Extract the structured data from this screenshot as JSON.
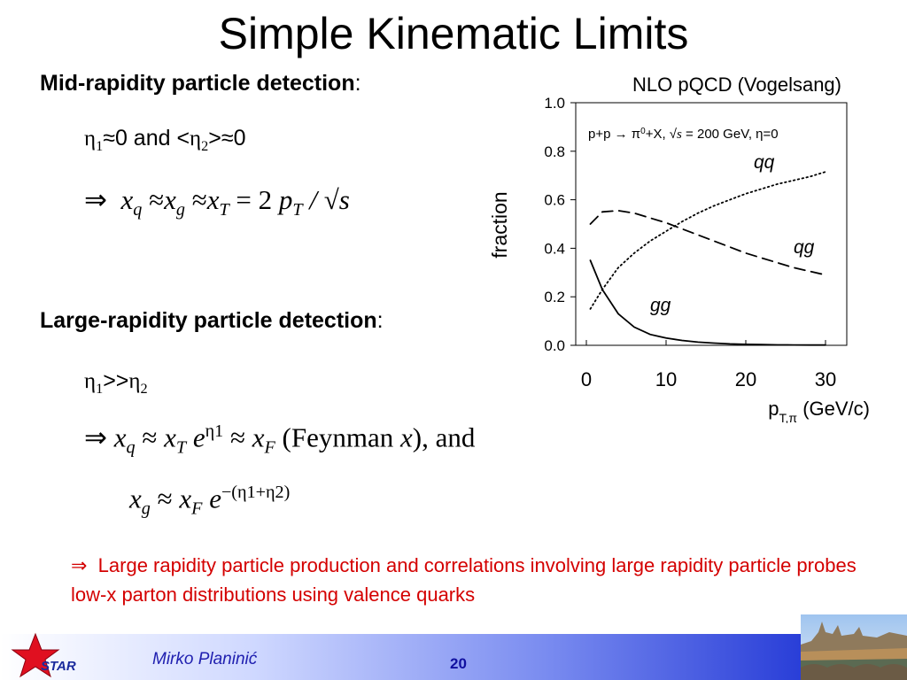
{
  "slide": {
    "title": "Simple Kinematic Limits",
    "mid": {
      "heading": "Mid-rapidity particle detection",
      "colon": ":",
      "condition_and": "0 and <",
      "condition_end": ">",
      "condition_zero": "0",
      "eta": "η",
      "approx": "≈",
      "sub1": "1",
      "sub2": "2"
    },
    "large": {
      "heading": "Large-rapidity particle detection",
      "colon": ":",
      "condition_gtgt": ">>",
      "feynman": "(Feynman ",
      "feynman_x": "x",
      "feynman_end": "), and"
    },
    "formula": {
      "implies": "⇒",
      "approx": "≈",
      "x": "x",
      "q": "q",
      "g": "g",
      "T": "T",
      "F": "F",
      "e": "e",
      "eq": "= 2",
      "p": "p",
      "slash": "/",
      "sqrt": "√",
      "s": "s",
      "eta1": "η1",
      "neg_sum": "−(η1+η2)"
    },
    "note": {
      "arrow": "⇒",
      "text": "Large rapidity particle production and correlations involving large rapidity particle probes low-x parton distributions using valence quarks"
    },
    "footer": {
      "author": "Mirko Planinić",
      "page": "20",
      "logo_text": "STAR"
    }
  },
  "colors": {
    "note": "#d40000",
    "footer_author": "#2020b0",
    "logo_star": "#e01020",
    "logo_text": "#1a2a9c"
  },
  "chart_data": {
    "type": "line",
    "title": "NLO pQCD  (Vogelsang)",
    "subtitle": {
      "process": "p+p → π",
      "pi_sup": "0",
      "rest": "+X, √",
      "s_italic": "s",
      "energy": " = 200 GeV, η=0"
    },
    "ylabel": "fraction",
    "xlabel": {
      "main": "p",
      "sub": "T,π",
      "unit": " (GeV/c)"
    },
    "xlim": [
      0,
      32
    ],
    "ylim": [
      0,
      1.0
    ],
    "x_ticks": [
      0,
      10,
      20,
      30
    ],
    "y_ticks": [
      "0.0",
      "0.2",
      "0.4",
      "0.6",
      "0.8",
      "1.0"
    ],
    "grid": false,
    "series": [
      {
        "name": "qq",
        "style": "dotted",
        "x": [
          0.5,
          2,
          4,
          6,
          8,
          10,
          12,
          14,
          16,
          18,
          20,
          22,
          24,
          26,
          28,
          30
        ],
        "y": [
          0.15,
          0.23,
          0.32,
          0.38,
          0.43,
          0.47,
          0.51,
          0.545,
          0.575,
          0.6,
          0.625,
          0.645,
          0.665,
          0.68,
          0.695,
          0.715
        ]
      },
      {
        "name": "qg",
        "style": "dashed",
        "x": [
          0.5,
          2,
          4,
          6,
          8,
          10,
          12,
          14,
          16,
          18,
          20,
          22,
          24,
          26,
          28,
          30
        ],
        "y": [
          0.5,
          0.55,
          0.555,
          0.545,
          0.525,
          0.505,
          0.48,
          0.455,
          0.43,
          0.405,
          0.38,
          0.36,
          0.34,
          0.32,
          0.305,
          0.29
        ]
      },
      {
        "name": "gg",
        "style": "solid",
        "x": [
          0.5,
          2,
          4,
          6,
          8,
          10,
          12,
          14,
          16,
          18,
          20,
          22,
          24,
          26,
          28,
          30
        ],
        "y": [
          0.35,
          0.23,
          0.13,
          0.075,
          0.045,
          0.03,
          0.02,
          0.013,
          0.009,
          0.006,
          0.004,
          0.003,
          0.002,
          0.0015,
          0.001,
          0.001
        ]
      }
    ]
  }
}
